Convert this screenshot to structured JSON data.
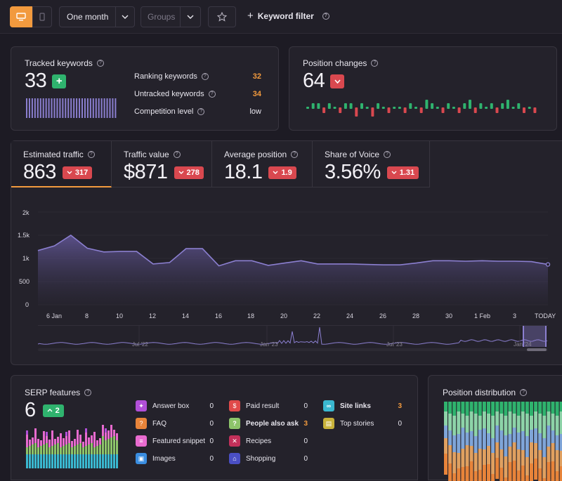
{
  "toolbar": {
    "period": "One month",
    "groups_placeholder": "Groups",
    "keyword_filter": "Keyword filter"
  },
  "tracked": {
    "label": "Tracked keywords",
    "value": "33",
    "plus": "+",
    "rows": [
      {
        "label": "Ranking keywords",
        "value": "32"
      },
      {
        "label": "Untracked keywords",
        "value": "34"
      },
      {
        "label": "Competition level",
        "value": "low"
      }
    ]
  },
  "position_changes": {
    "label": "Position changes",
    "value": "64"
  },
  "metrics": [
    {
      "label": "Estimated traffic",
      "value": "863",
      "delta": "317"
    },
    {
      "label": "Traffic value",
      "value": "$871",
      "delta": "278"
    },
    {
      "label": "Average position",
      "value": "18.1",
      "delta": "1.9"
    },
    {
      "label": "Share of Voice",
      "value": "3.56%",
      "delta": "1.31"
    }
  ],
  "chart_data": {
    "type": "area",
    "title": "Estimated traffic",
    "y_ticks": [
      "2k",
      "1.5k",
      "1k",
      "500",
      "0"
    ],
    "ylim": [
      0,
      2000
    ],
    "x_labels": [
      "6 Jan",
      "8",
      "10",
      "12",
      "14",
      "16",
      "18",
      "20",
      "22",
      "24",
      "26",
      "28",
      "30",
      "1 Feb",
      "3",
      "TODAY"
    ],
    "values": [
      1170,
      1270,
      1500,
      1220,
      1140,
      1150,
      1150,
      880,
      910,
      1210,
      1210,
      840,
      950,
      950,
      850,
      900,
      950,
      880,
      880,
      880,
      870,
      860,
      860,
      900,
      950,
      950,
      940,
      950,
      940,
      940,
      930,
      870
    ],
    "navigator_labels": [
      "Jul '22",
      "Jan '23",
      "Jul '23",
      "Jan '24"
    ]
  },
  "serp": {
    "label": "SERP features",
    "value": "6",
    "delta": "2",
    "items": [
      {
        "label": "Answer box",
        "value": "0",
        "color": "#b14fd8",
        "icon": "bulb-icon",
        "glyph": "✦"
      },
      {
        "label": "FAQ",
        "value": "0",
        "color": "#e8843a",
        "icon": "faq-icon",
        "glyph": "?"
      },
      {
        "label": "Featured snippet",
        "value": "0",
        "color": "#e86bcf",
        "icon": "snippet-icon",
        "glyph": "≡"
      },
      {
        "label": "Images",
        "value": "0",
        "color": "#3a8de0",
        "icon": "image-icon",
        "glyph": "▣"
      },
      {
        "label": "Paid result",
        "value": "0",
        "color": "#e04a4a",
        "icon": "ad-icon",
        "glyph": "$"
      },
      {
        "label": "People also ask",
        "value": "3",
        "color": "#8dc46a",
        "icon": "people-ask-icon",
        "glyph": "?"
      },
      {
        "label": "Recipes",
        "value": "0",
        "color": "#c2305a",
        "icon": "recipe-icon",
        "glyph": "✕"
      },
      {
        "label": "Shopping",
        "value": "0",
        "color": "#4a4fc4",
        "icon": "cart-icon",
        "glyph": "⌂"
      },
      {
        "label": "Site links",
        "value": "3",
        "color": "#3ab8d0",
        "icon": "link-icon",
        "glyph": "∞"
      },
      {
        "label": "Top stories",
        "value": "0",
        "color": "#c8b23a",
        "icon": "news-icon",
        "glyph": "▤"
      }
    ]
  },
  "position_distribution": {
    "label": "Position distribution"
  },
  "colors": {
    "accent": "#f29a3e",
    "red": "#d9484f",
    "green": "#2fb36e",
    "line": "#8b7fd0"
  }
}
